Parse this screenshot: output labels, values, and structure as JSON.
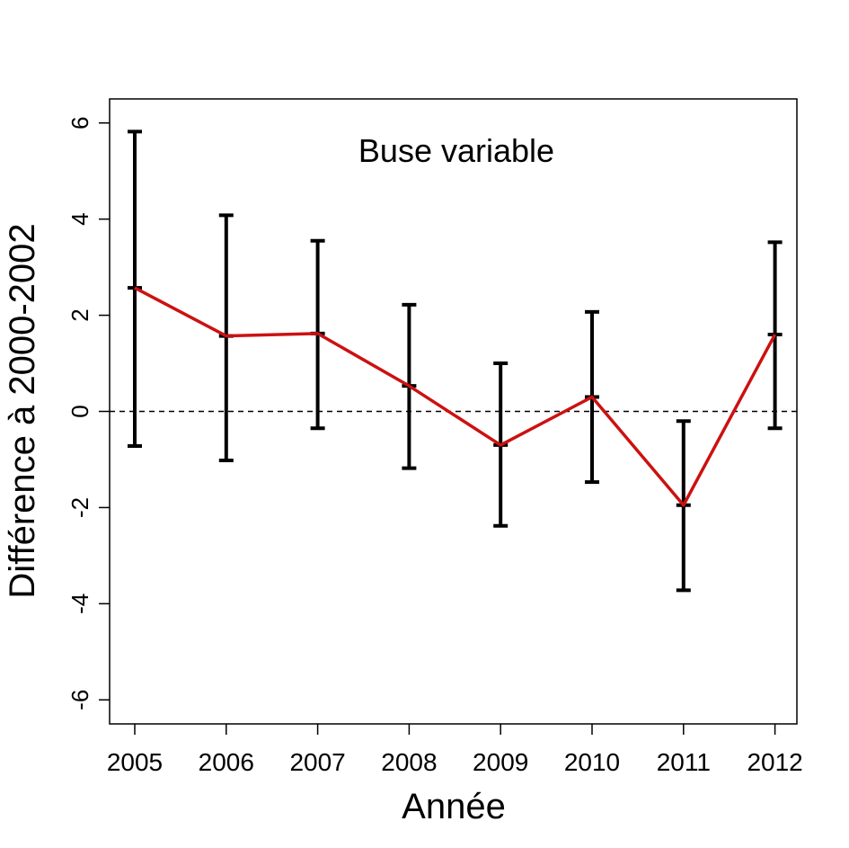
{
  "chart_data": {
    "type": "line",
    "title": "Buse variable",
    "xlabel": "Année",
    "ylabel": "Différence à 2000-2002",
    "categories": [
      "2005",
      "2006",
      "2007",
      "2008",
      "2009",
      "2010",
      "2011",
      "2012"
    ],
    "values": [
      2.57,
      1.57,
      1.62,
      0.53,
      -0.7,
      0.3,
      -1.95,
      1.6
    ],
    "error_lower": [
      -0.72,
      -1.02,
      -0.35,
      -1.18,
      -2.38,
      -1.47,
      -3.72,
      -0.35
    ],
    "error_upper": [
      5.82,
      4.08,
      3.55,
      2.22,
      1.0,
      2.07,
      -0.2,
      3.52
    ],
    "ylim": [
      -6.5,
      6.5
    ],
    "yticks": [
      -6,
      -4,
      -2,
      0,
      2,
      4,
      6
    ],
    "reference_line": 0,
    "grid": false,
    "colors": {
      "line": "#cc1111",
      "error_bars": "#000000",
      "reference": "#000000"
    }
  }
}
